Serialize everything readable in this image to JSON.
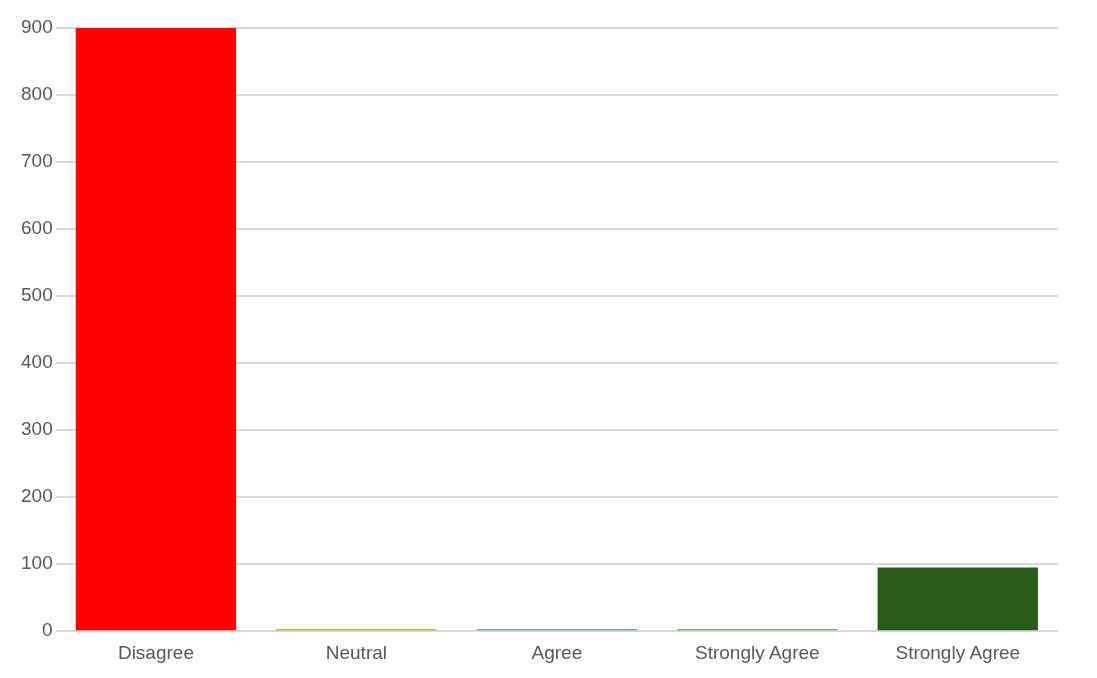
{
  "chart_data": {
    "type": "bar",
    "categories": [
      "Disagree",
      "Neutral",
      "Agree",
      "Strongly Agree",
      "Strongly Agree"
    ],
    "values": [
      900,
      0,
      0,
      0,
      95
    ],
    "colors": [
      "#ff0000",
      "#c49a00",
      "#3388b0",
      "#3aa84a",
      "#265b1a"
    ],
    "ylim": [
      0,
      900
    ],
    "yticks": [
      0,
      100,
      200,
      300,
      400,
      500,
      600,
      700,
      800,
      900
    ],
    "grid": "y",
    "legend": false
  }
}
